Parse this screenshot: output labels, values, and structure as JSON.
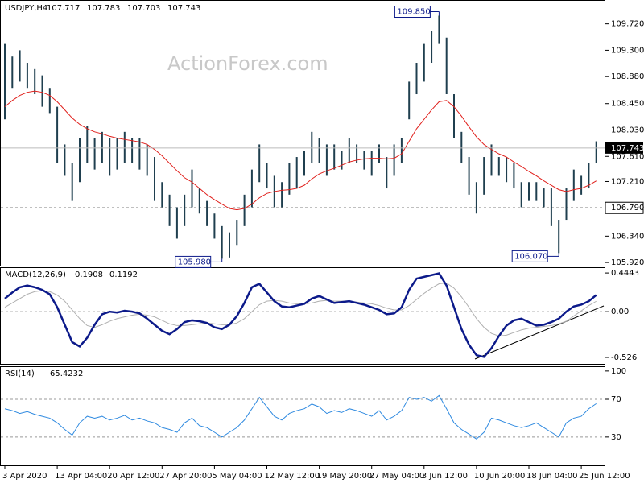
{
  "chart_data": [
    {
      "type": "ohlc",
      "symbol": "USDJPY,H4",
      "open": 107.717,
      "high": 107.783,
      "low": 107.703,
      "close": 107.743,
      "watermark": "ActionForex.com",
      "categories": [
        "3 Apr 2020",
        null,
        null,
        null,
        null,
        null,
        null,
        "13 Apr 04:00",
        null,
        null,
        null,
        null,
        null,
        null,
        "20 Apr 12:00",
        null,
        null,
        null,
        null,
        null,
        null,
        "27 Apr 20:00",
        null,
        null,
        null,
        null,
        null,
        null,
        "5 May 04:00",
        null,
        null,
        null,
        null,
        null,
        null,
        "12 May 12:00",
        null,
        null,
        null,
        null,
        null,
        null,
        "19 May 20:00",
        null,
        null,
        null,
        null,
        null,
        null,
        "27 May 04:00",
        null,
        null,
        null,
        null,
        null,
        null,
        "3 Jun 12:00",
        null,
        null,
        null,
        null,
        null,
        null,
        "10 Jun 20:00",
        null,
        null,
        null,
        null,
        null,
        null,
        "18 Jun 04:00",
        null,
        null,
        null,
        null,
        null,
        null,
        "25 Jun 12:00",
        null,
        null
      ],
      "highs": [
        109.4,
        109.2,
        109.3,
        109.1,
        109.0,
        108.9,
        108.7,
        108.4,
        107.8,
        107.5,
        107.9,
        108.1,
        107.9,
        108.0,
        107.9,
        107.9,
        108.0,
        107.9,
        107.9,
        107.8,
        107.6,
        107.2,
        107.0,
        106.8,
        107.0,
        107.4,
        107.1,
        106.9,
        106.7,
        106.5,
        106.4,
        106.6,
        107.0,
        107.4,
        107.8,
        107.5,
        107.3,
        107.2,
        107.5,
        107.6,
        107.7,
        108.0,
        107.9,
        107.8,
        107.8,
        107.7,
        107.9,
        107.8,
        107.7,
        107.7,
        107.8,
        107.6,
        107.8,
        107.9,
        108.8,
        109.1,
        109.4,
        109.6,
        109.85,
        109.5,
        108.6,
        108.0,
        107.6,
        107.2,
        107.6,
        107.8,
        107.6,
        107.6,
        107.5,
        107.2,
        107.2,
        107.2,
        107.1,
        107.1,
        106.6,
        107.1,
        107.4,
        107.3,
        107.5,
        107.85
      ],
      "lows": [
        108.2,
        108.7,
        108.8,
        108.7,
        108.6,
        108.4,
        108.3,
        107.5,
        107.3,
        106.9,
        107.2,
        107.5,
        107.4,
        107.5,
        107.3,
        107.4,
        107.5,
        107.5,
        107.4,
        107.3,
        106.9,
        106.8,
        106.5,
        106.3,
        106.5,
        106.8,
        106.7,
        106.5,
        106.3,
        105.98,
        106.0,
        106.2,
        106.5,
        106.8,
        107.2,
        107.1,
        106.8,
        106.8,
        107.0,
        107.1,
        107.3,
        107.5,
        107.5,
        107.3,
        107.4,
        107.4,
        107.5,
        107.5,
        107.4,
        107.3,
        107.5,
        107.1,
        107.3,
        107.5,
        108.2,
        108.6,
        108.8,
        109.1,
        109.4,
        108.6,
        107.9,
        107.5,
        107.0,
        106.7,
        107.0,
        107.3,
        107.3,
        107.2,
        107.1,
        106.8,
        106.9,
        106.9,
        106.8,
        106.5,
        106.07,
        106.6,
        106.9,
        107.0,
        107.1,
        107.5
      ],
      "ma": [
        108.4,
        108.5,
        108.58,
        108.63,
        108.65,
        108.63,
        108.58,
        108.48,
        108.35,
        108.22,
        108.12,
        108.05,
        108.0,
        107.97,
        107.93,
        107.9,
        107.88,
        107.86,
        107.84,
        107.8,
        107.72,
        107.62,
        107.5,
        107.38,
        107.27,
        107.2,
        107.1,
        107.0,
        106.92,
        106.85,
        106.78,
        106.76,
        106.78,
        106.85,
        106.95,
        107.02,
        107.05,
        107.07,
        107.08,
        107.1,
        107.15,
        107.25,
        107.33,
        107.38,
        107.42,
        107.47,
        107.52,
        107.55,
        107.57,
        107.58,
        107.58,
        107.57,
        107.58,
        107.65,
        107.85,
        108.05,
        108.2,
        108.35,
        108.48,
        108.5,
        108.4,
        108.25,
        108.08,
        107.92,
        107.8,
        107.72,
        107.65,
        107.6,
        107.52,
        107.45,
        107.37,
        107.3,
        107.22,
        107.15,
        107.08,
        107.05,
        107.08,
        107.1,
        107.15,
        107.22
      ],
      "bar_color": "#1f3f4f",
      "ma_color": "#e0201c",
      "ylim": [
        105.87,
        110.1
      ],
      "yticks": [
        {
          "value": 109.72,
          "label": "109.720"
        },
        {
          "value": 109.3,
          "label": "109.300"
        },
        {
          "value": 108.88,
          "label": "108.880"
        },
        {
          "value": 108.45,
          "label": "108.450"
        },
        {
          "value": 108.03,
          "label": "108.030"
        },
        {
          "value": 107.61,
          "label": "107.610"
        },
        {
          "value": 107.21,
          "label": "107.210"
        },
        {
          "value": 106.34,
          "label": "106.340"
        },
        {
          "value": 105.92,
          "label": "105.920"
        }
      ],
      "level": {
        "value": 106.79,
        "label": "106.790"
      },
      "annotations": [
        {
          "value": 109.85,
          "label": "109.850"
        },
        {
          "value": 105.98,
          "label": "105.980"
        },
        {
          "value": 106.07,
          "label": "106.070"
        }
      ]
    },
    {
      "type": "line",
      "title": "MACD(12,26,9)",
      "series": [
        {
          "name": "MACD",
          "color": "#0c1a8a",
          "values": [
            0.15,
            0.22,
            0.28,
            0.3,
            0.28,
            0.25,
            0.2,
            0.05,
            -0.15,
            -0.35,
            -0.4,
            -0.3,
            -0.15,
            -0.03,
            0.0,
            -0.01,
            0.01,
            0.0,
            -0.02,
            -0.08,
            -0.15,
            -0.22,
            -0.26,
            -0.2,
            -0.12,
            -0.1,
            -0.11,
            -0.13,
            -0.18,
            -0.2,
            -0.15,
            -0.05,
            0.1,
            0.28,
            0.32,
            0.22,
            0.12,
            0.06,
            0.05,
            0.07,
            0.09,
            0.15,
            0.18,
            0.14,
            0.1,
            0.11,
            0.12,
            0.1,
            0.08,
            0.05,
            0.02,
            -0.03,
            -0.02,
            0.05,
            0.25,
            0.38,
            0.4,
            0.42,
            0.44,
            0.3,
            0.05,
            -0.2,
            -0.38,
            -0.5,
            -0.52,
            -0.42,
            -0.28,
            -0.16,
            -0.1,
            -0.08,
            -0.12,
            -0.16,
            -0.15,
            -0.12,
            -0.08,
            0.0,
            0.06,
            0.08,
            0.12,
            0.1908
          ]
        },
        {
          "name": "Signal",
          "color": "#b0b0b0",
          "values": [
            0.05,
            0.1,
            0.15,
            0.2,
            0.23,
            0.24,
            0.23,
            0.19,
            0.12,
            0.02,
            -0.08,
            -0.16,
            -0.18,
            -0.15,
            -0.11,
            -0.08,
            -0.06,
            -0.04,
            -0.03,
            -0.04,
            -0.06,
            -0.1,
            -0.14,
            -0.16,
            -0.16,
            -0.15,
            -0.14,
            -0.13,
            -0.14,
            -0.15,
            -0.15,
            -0.13,
            -0.08,
            0.0,
            0.08,
            0.12,
            0.13,
            0.12,
            0.1,
            0.09,
            0.09,
            0.1,
            0.12,
            0.13,
            0.12,
            0.12,
            0.12,
            0.11,
            0.1,
            0.09,
            0.07,
            0.04,
            0.02,
            0.02,
            0.07,
            0.14,
            0.21,
            0.27,
            0.32,
            0.33,
            0.27,
            0.17,
            0.05,
            -0.08,
            -0.18,
            -0.25,
            -0.28,
            -0.27,
            -0.24,
            -0.21,
            -0.19,
            -0.18,
            -0.17,
            -0.16,
            -0.14,
            -0.11,
            -0.05,
            0.01,
            0.07,
            0.1192
          ]
        }
      ],
      "ylim": [
        -0.6,
        0.51
      ],
      "yticks": [
        0.4443,
        {
          "value": 0,
          "label": "0.00"
        },
        -0.526
      ]
    },
    {
      "type": "line",
      "title": "RSI(14)",
      "series": [
        {
          "name": "RSI",
          "color": "#2f8ae0",
          "values": [
            60,
            58,
            55,
            57,
            54,
            52,
            50,
            45,
            38,
            32,
            45,
            52,
            50,
            52,
            48,
            50,
            53,
            48,
            50,
            47,
            45,
            40,
            38,
            35,
            45,
            50,
            42,
            40,
            35,
            30,
            35,
            40,
            48,
            60,
            72,
            62,
            52,
            48,
            55,
            58,
            60,
            65,
            62,
            55,
            58,
            56,
            60,
            58,
            55,
            52,
            58,
            48,
            52,
            58,
            72,
            70,
            72,
            68,
            74,
            60,
            45,
            38,
            33,
            28,
            35,
            50,
            48,
            45,
            42,
            40,
            42,
            45,
            40,
            35,
            30,
            45,
            50,
            52,
            60,
            65.4232
          ]
        }
      ],
      "ylim": [
        0,
        105
      ],
      "yticks": [
        100,
        70,
        30
      ]
    }
  ]
}
